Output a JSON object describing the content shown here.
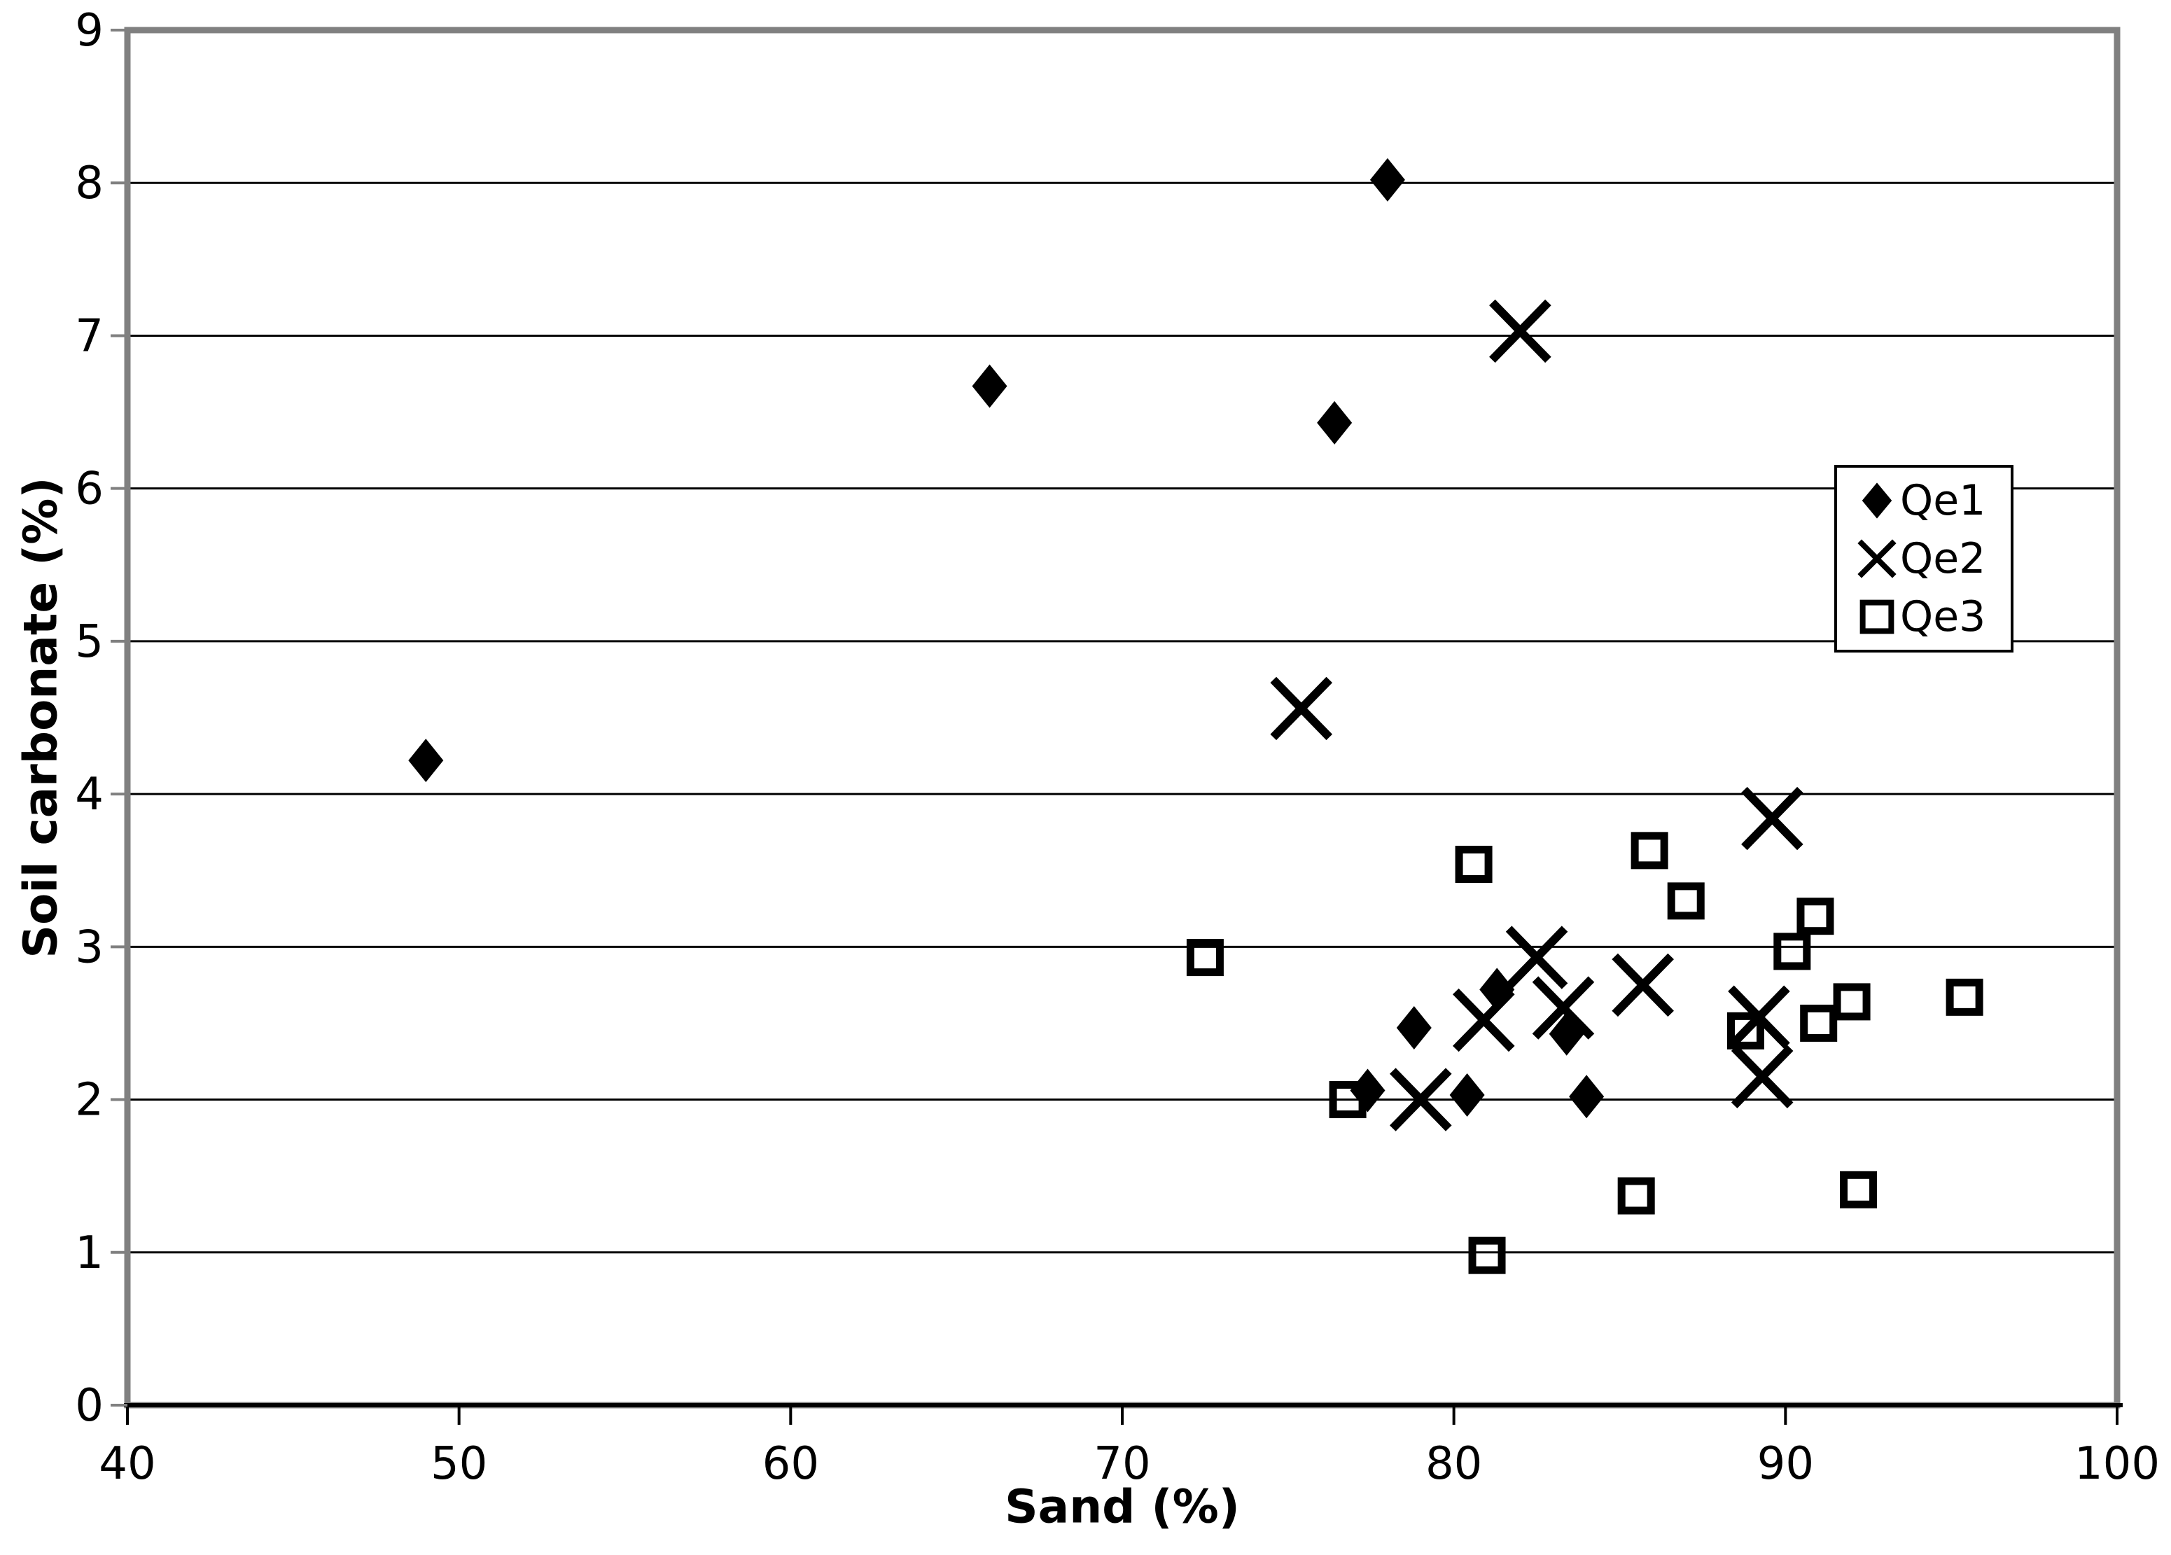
{
  "chart_data": {
    "type": "scatter",
    "title": "",
    "xlabel": "Sand (%)",
    "ylabel": "Soil carbonate (%)",
    "xlim": [
      40,
      100
    ],
    "ylim": [
      0,
      9
    ],
    "x_ticks": [
      40,
      50,
      60,
      70,
      80,
      90,
      100
    ],
    "y_ticks": [
      0,
      1,
      2,
      3,
      4,
      5,
      6,
      7,
      8,
      9
    ],
    "grid": "horizontal",
    "legend_position": "upper-right-inside",
    "series": [
      {
        "name": "Qe1",
        "marker": "filled-diamond",
        "color": "#000000",
        "points": [
          [
            78,
            8.02
          ],
          [
            66,
            6.67
          ],
          [
            76.4,
            6.43
          ],
          [
            49,
            4.22
          ],
          [
            78.8,
            2.47
          ],
          [
            81.3,
            2.72
          ],
          [
            83.4,
            2.43
          ],
          [
            77.4,
            2.06
          ],
          [
            80.4,
            2.03
          ],
          [
            84,
            2.02
          ]
        ]
      },
      {
        "name": "Qe2",
        "marker": "x",
        "color": "#000000",
        "points": [
          [
            82,
            7.03
          ],
          [
            75.4,
            4.56
          ],
          [
            89.6,
            3.84
          ],
          [
            82.5,
            2.93
          ],
          [
            85.7,
            2.75
          ],
          [
            80.9,
            2.52
          ],
          [
            83.3,
            2.6
          ],
          [
            89.2,
            2.54
          ],
          [
            89.3,
            2.15
          ],
          [
            79,
            2.0
          ]
        ]
      },
      {
        "name": "Qe3",
        "marker": "open-square",
        "color": "#000000",
        "points": [
          [
            72.5,
            2.93
          ],
          [
            80.6,
            3.54
          ],
          [
            85.9,
            3.63
          ],
          [
            87,
            3.3
          ],
          [
            90.9,
            3.2
          ],
          [
            90.2,
            2.97
          ],
          [
            88.8,
            2.45
          ],
          [
            91,
            2.5
          ],
          [
            92,
            2.64
          ],
          [
            95.4,
            2.67
          ],
          [
            76.8,
            2.0
          ],
          [
            85.5,
            1.37
          ],
          [
            92.2,
            1.41
          ],
          [
            81,
            0.98
          ]
        ]
      }
    ]
  },
  "colors": {
    "background": "#ffffff",
    "gridline": "#000000",
    "axis_border": "#808080",
    "axis_line": "#000000",
    "marker": "#000000"
  }
}
